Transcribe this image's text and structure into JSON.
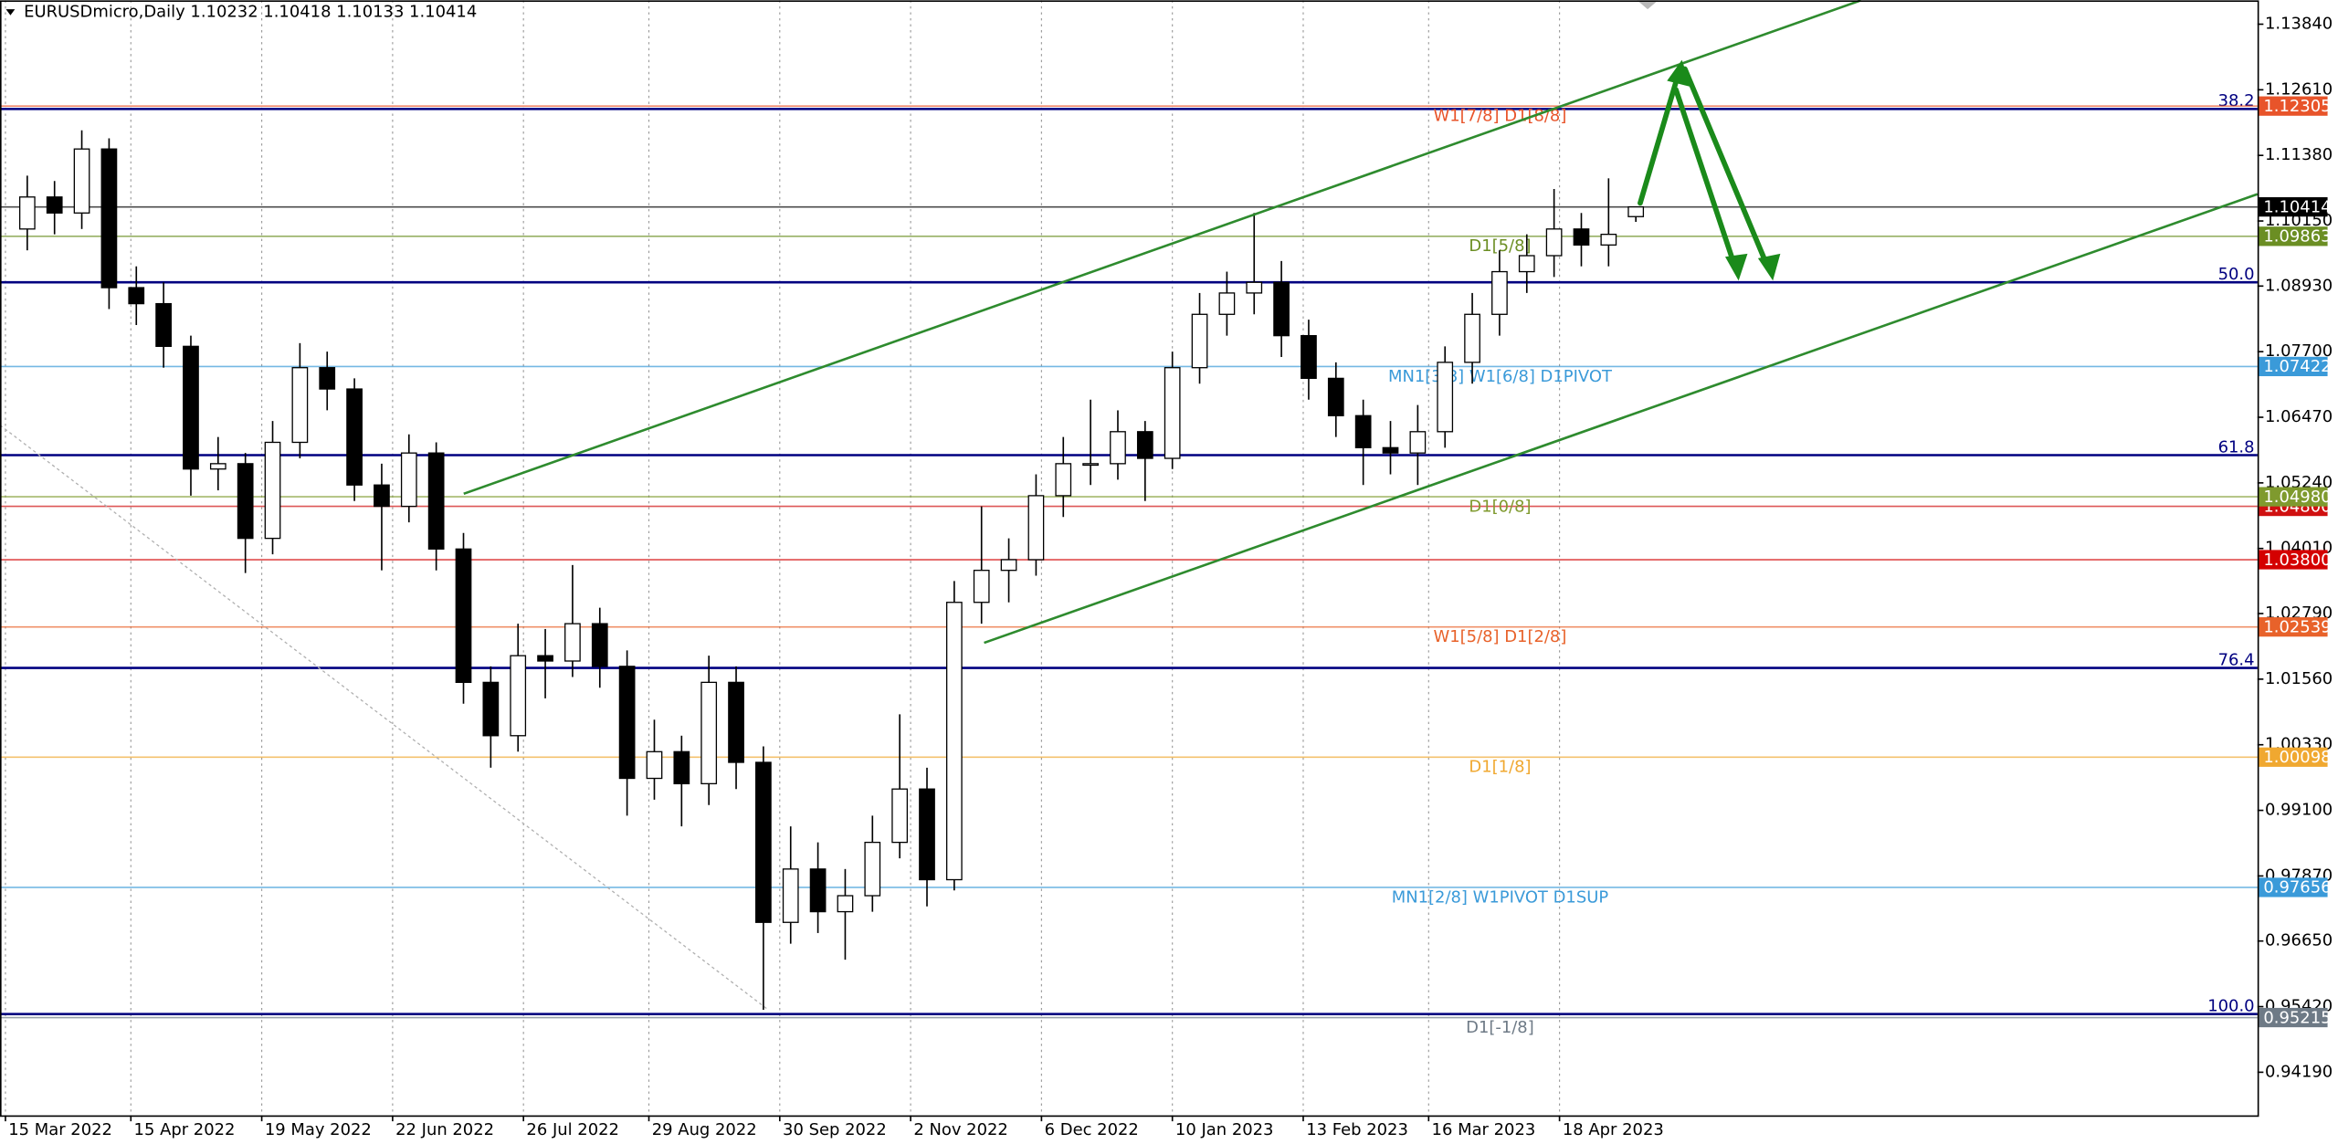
{
  "chart_data": {
    "type": "candlestick",
    "title": "EURUSDmicro,Daily  1.10232 1.10418 1.10133 1.10414",
    "x": [
      4,
      9,
      14,
      19,
      24,
      29,
      34,
      39,
      44,
      49,
      54,
      59,
      64,
      69,
      74,
      79,
      84,
      89,
      94,
      99,
      104,
      109,
      114,
      119,
      124,
      129,
      134,
      139,
      144,
      149,
      154,
      159,
      164,
      169,
      174,
      179,
      184,
      189,
      194,
      199,
      204,
      209,
      214,
      219,
      224,
      229,
      234,
      239,
      244,
      249,
      254,
      259,
      264,
      269,
      274,
      279,
      284,
      289,
      294,
      299
    ],
    "open": [
      1.1,
      1.106,
      1.103,
      1.115,
      1.089,
      1.086,
      1.078,
      1.055,
      1.056,
      1.042,
      1.06,
      1.074,
      1.07,
      1.052,
      1.048,
      1.058,
      1.04,
      1.015,
      1.005,
      1.02,
      1.019,
      1.026,
      1.018,
      0.997,
      1.002,
      0.996,
      1.015,
      1.0,
      0.97,
      0.98,
      0.972,
      0.975,
      0.985,
      0.995,
      0.978,
      1.03,
      1.036,
      1.038,
      1.05,
      1.056,
      1.056,
      1.062,
      1.057,
      1.074,
      1.084,
      1.088,
      1.09,
      1.08,
      1.072,
      1.065,
      1.059,
      1.058,
      1.062,
      1.075,
      1.084,
      1.092,
      1.095,
      1.1,
      1.097,
      1.10232
    ],
    "high": [
      1.11,
      1.109,
      1.1185,
      1.117,
      1.093,
      1.09,
      1.08,
      1.061,
      1.058,
      1.064,
      1.0786,
      1.077,
      1.072,
      1.056,
      1.0615,
      1.06,
      1.043,
      1.018,
      1.026,
      1.025,
      1.037,
      1.029,
      1.021,
      1.008,
      1.005,
      1.02,
      1.018,
      1.003,
      0.988,
      0.985,
      0.98,
      0.99,
      1.009,
      0.999,
      1.034,
      1.048,
      1.042,
      1.054,
      1.061,
      1.068,
      1.066,
      1.064,
      1.077,
      1.088,
      1.092,
      1.103,
      1.094,
      1.083,
      1.075,
      1.068,
      1.064,
      1.067,
      1.078,
      1.088,
      1.096,
      1.099,
      1.1075,
      1.103,
      1.1095,
      1.10418
    ],
    "low": [
      1.096,
      1.099,
      1.1,
      1.085,
      1.082,
      1.074,
      1.05,
      1.051,
      1.0355,
      1.039,
      1.057,
      1.066,
      1.049,
      1.036,
      1.045,
      1.036,
      1.011,
      0.999,
      1.002,
      1.012,
      1.016,
      1.014,
      0.99,
      0.993,
      0.988,
      0.992,
      0.995,
      0.9536,
      0.966,
      0.968,
      0.963,
      0.972,
      0.982,
      0.973,
      0.976,
      1.026,
      1.03,
      1.035,
      1.046,
      1.052,
      1.053,
      1.049,
      1.055,
      1.071,
      1.08,
      1.084,
      1.076,
      1.068,
      1.061,
      1.052,
      1.054,
      1.052,
      1.059,
      1.071,
      1.08,
      1.088,
      1.091,
      1.093,
      1.093,
      1.10133
    ],
    "close": [
      1.106,
      1.103,
      1.115,
      1.089,
      1.086,
      1.078,
      1.055,
      1.056,
      1.042,
      1.06,
      1.074,
      1.07,
      1.052,
      1.048,
      1.058,
      1.04,
      1.015,
      1.005,
      1.02,
      1.019,
      1.026,
      1.018,
      0.997,
      1.002,
      0.996,
      1.015,
      1.0,
      0.97,
      0.98,
      0.972,
      0.975,
      0.985,
      0.995,
      0.978,
      1.03,
      1.036,
      1.038,
      1.05,
      1.056,
      1.056,
      1.062,
      1.057,
      1.074,
      1.084,
      1.088,
      1.09,
      1.08,
      1.072,
      1.065,
      1.059,
      1.058,
      1.062,
      1.075,
      1.084,
      1.092,
      1.095,
      1.1,
      1.097,
      1.099,
      1.10414
    ],
    "up_color": "#ffffff",
    "down_color": "#000000",
    "xlim": [
      -1,
      413
    ],
    "xticks": [
      {
        "value": 0,
        "label": "15 Mar 2022"
      },
      {
        "value": 23,
        "label": "15 Apr 2022"
      },
      {
        "value": 47,
        "label": "19 May 2022"
      },
      {
        "value": 71,
        "label": "22 Jun 2022"
      },
      {
        "value": 95,
        "label": "26 Jul 2022"
      },
      {
        "value": 118,
        "label": "29 Aug 2022"
      },
      {
        "value": 142,
        "label": "30 Sep 2022"
      },
      {
        "value": 166,
        "label": "2 Nov 2022"
      },
      {
        "value": 190,
        "label": "6 Dec 2022"
      },
      {
        "value": 214,
        "label": "10 Jan 2023"
      },
      {
        "value": 238,
        "label": "13 Feb 2023"
      },
      {
        "value": 261,
        "label": "16 Mar 2023"
      },
      {
        "value": 285,
        "label": "18 Apr 2023"
      }
    ],
    "ylim": [
      0.93382,
      1.14287
    ],
    "yticks": [
      {
        "value": 1.1384,
        "label": "1.13840"
      },
      {
        "value": 1.1261,
        "label": "1.12610"
      },
      {
        "value": 1.1138,
        "label": "1.11380"
      },
      {
        "value": 1.1015,
        "label": "1.10150"
      },
      {
        "value": 1.0893,
        "label": "1.08930"
      },
      {
        "value": 1.077,
        "label": "1.07700"
      },
      {
        "value": 1.0647,
        "label": "1.06470"
      },
      {
        "value": 1.0524,
        "label": "1.05240"
      },
      {
        "value": 1.0401,
        "label": "1.04010"
      },
      {
        "value": 1.0279,
        "label": "1.02790"
      },
      {
        "value": 1.0156,
        "label": "1.01560"
      },
      {
        "value": 1.0033,
        "label": "1.00330"
      },
      {
        "value": 0.991,
        "label": "0.99100"
      },
      {
        "value": 0.9787,
        "label": "0.97870"
      },
      {
        "value": 0.9665,
        "label": "0.96650"
      },
      {
        "value": 0.9542,
        "label": "0.95420"
      },
      {
        "value": 0.9419,
        "label": "0.94190"
      }
    ],
    "grid": true,
    "fib_levels": [
      {
        "value": 1.1225,
        "label": "38.2"
      },
      {
        "value": 1.09,
        "label": "50.0"
      },
      {
        "value": 1.0576,
        "label": "61.8"
      },
      {
        "value": 1.0177,
        "label": "76.4"
      },
      {
        "value": 0.9528,
        "label": "100.0"
      }
    ],
    "fib_color": "#000080",
    "levels": [
      {
        "value": 1.12305,
        "value_label": "1.12305",
        "color": "#e8542a",
        "text": "W1[7/8] D1[8/8]"
      },
      {
        "value": 1.10414,
        "value_label": "1.10414",
        "color": "#000000"
      },
      {
        "value": 1.09863,
        "value_label": "1.09863",
        "color": "#6b8e23",
        "text": "D1[5/8]"
      },
      {
        "value": 1.07422,
        "value_label": "1.07422",
        "color": "#3a9ad9",
        "text": "MN1[3/8] W1[6/8] D1PIVOT"
      },
      {
        "value": 1.048,
        "value_label": "1.04800",
        "color": "#d01010"
      },
      {
        "value": 1.0498,
        "value_label": "1.04980",
        "color": "#7f9a2e",
        "text": "D1[0/8]"
      },
      {
        "value": 1.038,
        "value_label": "1.03800",
        "color": "#d40000"
      },
      {
        "value": 1.02539,
        "value_label": "1.02539",
        "color": "#e8622a",
        "text": "W1[5/8] D1[2/8]"
      },
      {
        "value": 1.00098,
        "value_label": "1.00098",
        "color": "#f0a830",
        "text": "D1[1/8]"
      },
      {
        "value": 0.97656,
        "value_label": "0.97656",
        "color": "#3a9ad9",
        "text": "MN1[2/8] W1PIVOT D1SUP"
      },
      {
        "value": 0.95215,
        "value_label": "0.95215",
        "color": "#6e7a86",
        "text": "D1[-1/8]"
      }
    ]
  }
}
